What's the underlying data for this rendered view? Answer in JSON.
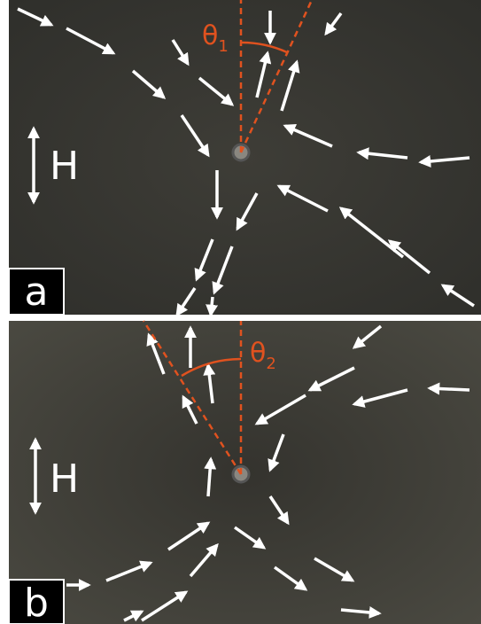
{
  "panels": [
    {
      "label": "a",
      "field": "H",
      "angle": {
        "symbol": "θ",
        "subscript": "1"
      }
    },
    {
      "label": "b",
      "field": "H",
      "angle": {
        "symbol": "θ",
        "subscript": "2"
      }
    }
  ]
}
